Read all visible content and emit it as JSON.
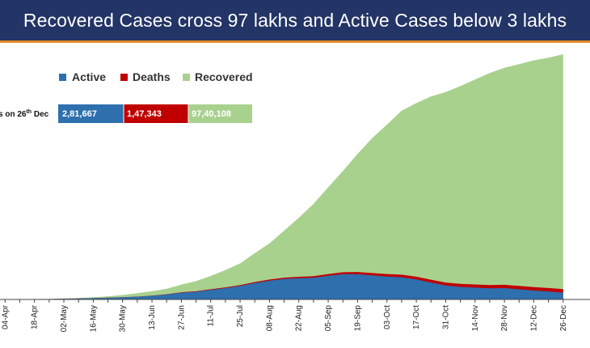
{
  "header": {
    "title": "Recovered Cases cross 97 lakhs and Active Cases below 3 lakhs",
    "background": "#233466",
    "accent_line": "#e58a2b"
  },
  "chart_data": {
    "type": "area",
    "stacked": true,
    "legend_position": "top-left",
    "x_tick_labels": [
      "04-Apr",
      "18-Apr",
      "02-May",
      "16-May",
      "30-May",
      "13-Jun",
      "27-Jun",
      "11-Jul",
      "25-Jul",
      "08-Aug",
      "22-Aug",
      "05-Sep",
      "19-Sep",
      "03-Oct",
      "17-Oct",
      "31-Oct",
      "14-Nov",
      "28-Nov",
      "12-Dec",
      "26-Dec"
    ],
    "x": [
      "21-Mar",
      "28-Mar",
      "04-Apr",
      "11-Apr",
      "18-Apr",
      "25-Apr",
      "02-May",
      "09-May",
      "16-May",
      "23-May",
      "30-May",
      "06-Jun",
      "13-Jun",
      "20-Jun",
      "27-Jun",
      "04-Jul",
      "11-Jul",
      "18-Jul",
      "25-Jul",
      "01-Aug",
      "08-Aug",
      "15-Aug",
      "22-Aug",
      "29-Aug",
      "05-Sep",
      "12-Sep",
      "19-Sep",
      "26-Sep",
      "03-Oct",
      "10-Oct",
      "17-Oct",
      "24-Oct",
      "31-Oct",
      "07-Nov",
      "14-Nov",
      "21-Nov",
      "28-Nov",
      "05-Dec",
      "12-Dec",
      "19-Dec",
      "26-Dec"
    ],
    "series": [
      {
        "name": "Active",
        "color": "#2e6fad",
        "values": [
          300,
          900,
          3000,
          6500,
          11000,
          18000,
          27000,
          38000,
          53000,
          70000,
          89000,
          112000,
          150000,
          200000,
          280000,
          320000,
          400000,
          470000,
          560000,
          680000,
          780000,
          850000,
          880000,
          900000,
          980000,
          1050000,
          1050000,
          1000000,
          950000,
          920000,
          830000,
          700000,
          580000,
          520000,
          490000,
          460000,
          470000,
          420000,
          370000,
          330000,
          281667
        ]
      },
      {
        "name": "Deaths",
        "color": "#c00000",
        "values": [
          5,
          30,
          100,
          300,
          600,
          900,
          1300,
          2000,
          3000,
          4300,
          5400,
          7000,
          9500,
          13000,
          16500,
          20000,
          25000,
          29000,
          34000,
          40000,
          46000,
          52000,
          58000,
          64000,
          72000,
          80000,
          88000,
          95000,
          101000,
          108000,
          114000,
          118000,
          122000,
          126000,
          130000,
          134000,
          137000,
          140000,
          143000,
          145000,
          147343
        ]
      },
      {
        "name": "Recovered",
        "color": "#a9d18e",
        "values": [
          20,
          100,
          300,
          1000,
          3000,
          6000,
          12000,
          20000,
          35000,
          55000,
          90000,
          140000,
          180000,
          230000,
          320000,
          420000,
          550000,
          720000,
          900000,
          1200000,
          1500000,
          1950000,
          2450000,
          3000000,
          3600000,
          4200000,
          4900000,
          5600000,
          6200000,
          6800000,
          7200000,
          7600000,
          7900000,
          8200000,
          8500000,
          8800000,
          9000000,
          9200000,
          9400000,
          9550000,
          9740108
        ]
      }
    ],
    "summary_table": {
      "label_visible": "s on 26",
      "label_superscript": "th",
      "label_tail": " Dec",
      "cells": [
        {
          "series": "Active",
          "value": "2,81,667"
        },
        {
          "series": "Deaths",
          "value": "1,47,343"
        },
        {
          "series": "Recovered",
          "value": "97,40,108"
        }
      ]
    }
  }
}
